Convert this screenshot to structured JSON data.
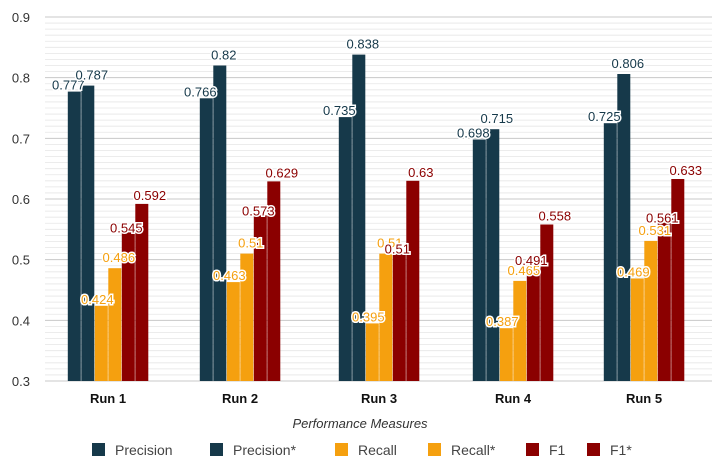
{
  "chart_data": {
    "type": "bar",
    "title": "",
    "xlabel": "Performance Measures",
    "ylabel": "",
    "ylim": [
      0.3,
      0.9
    ],
    "yticks": [
      "0.3",
      "0.4",
      "0.5",
      "0.6",
      "0.7",
      "0.8",
      "0.9"
    ],
    "grid": true,
    "legend_position": "bottom",
    "categories": [
      "Run 1",
      "Run 2",
      "Run 3",
      "Run 4",
      "Run 5"
    ],
    "series": [
      {
        "name": "Precision",
        "color": "#16394a",
        "label_color": "#16394a",
        "values": [
          0.777,
          0.766,
          0.735,
          0.698,
          0.725
        ]
      },
      {
        "name": "Precision*",
        "color": "#16394a",
        "label_color": "#16394a",
        "values": [
          0.787,
          0.82,
          0.838,
          0.715,
          0.806
        ]
      },
      {
        "name": "Recall",
        "color": "#f5a00f",
        "label_color": "#f5a00f",
        "values": [
          0.424,
          0.463,
          0.395,
          0.387,
          0.469
        ]
      },
      {
        "name": "Recall*",
        "color": "#f5a00f",
        "label_color": "#f5a00f",
        "values": [
          0.486,
          0.51,
          0.51,
          0.465,
          0.531
        ]
      },
      {
        "name": "F1",
        "color": "#8b0000",
        "label_color": "#8b0000",
        "values": [
          0.545,
          0.573,
          0.51,
          0.491,
          0.561
        ]
      },
      {
        "name": "F1*",
        "color": "#8b0000",
        "label_color": "#8b0000",
        "values": [
          0.592,
          0.629,
          0.63,
          0.558,
          0.633
        ]
      }
    ],
    "data_labels": [
      [
        "0.777",
        "0.787",
        "0.424",
        "0.486",
        "0.545",
        "0.592"
      ],
      [
        "0.766",
        "0.82",
        "0.463",
        "0.51",
        "0.573",
        "0.629"
      ],
      [
        "0.735",
        "0.838",
        "0.395",
        "0.51",
        "0.51",
        "0.63"
      ],
      [
        "0.698",
        "0.715",
        "0.387",
        "0.465",
        "0.491",
        "0.558"
      ],
      [
        "0.725",
        "0.806",
        "0.469",
        "0.531",
        "0.561",
        "0.633"
      ]
    ]
  }
}
